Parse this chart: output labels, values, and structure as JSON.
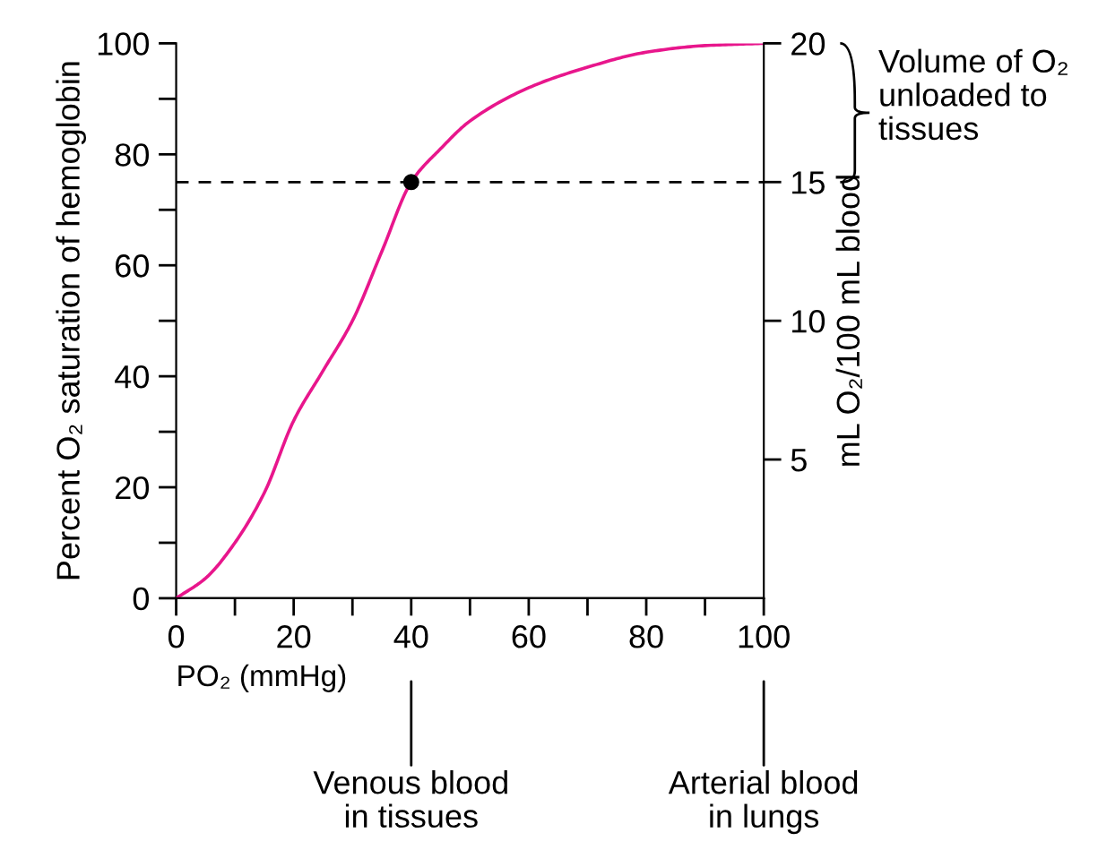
{
  "chart_data": {
    "type": "line",
    "xlabel": "PO₂ (mmHg)",
    "ylabel": "Percent O₂ saturation of hemoglobin",
    "y2label": "mL O₂/100 mL blood",
    "series": [
      {
        "color": "#e8168c",
        "x": [
          0,
          5,
          10,
          15,
          20,
          25,
          30,
          35,
          40,
          45,
          50,
          60,
          70,
          80,
          90,
          100
        ],
        "values": [
          0,
          3.6,
          10,
          19,
          32,
          41,
          50,
          62.5,
          75,
          81,
          86,
          92,
          95.7,
          98.4,
          99.6,
          100
        ]
      },
      {
        "type": "scatter",
        "color": "#000000",
        "marker": "circle",
        "x": [
          40
        ],
        "values": [
          75
        ]
      }
    ],
    "xlim": [
      0,
      100
    ],
    "ylim": [
      0,
      100
    ],
    "y2lim": [
      0,
      20
    ],
    "xticks": [
      0,
      {
        "value": 10,
        "label": null
      },
      20,
      {
        "value": 30,
        "label": null
      },
      40,
      {
        "value": 50,
        "label": null
      },
      60,
      {
        "value": 70,
        "label": null
      },
      80,
      {
        "value": 90,
        "label": null
      },
      100
    ],
    "yticks": [
      0,
      {
        "value": 10,
        "label": null
      },
      20,
      {
        "value": 30,
        "label": null
      },
      40,
      {
        "value": 50,
        "label": null
      },
      60,
      {
        "value": 70,
        "label": null
      },
      80,
      {
        "value": 90,
        "label": null
      },
      100
    ],
    "y2ticks": [
      5,
      10,
      15,
      20
    ],
    "ref_lines": [
      {
        "axis": "y",
        "value": 75,
        "color": "#000000",
        "line_style": "dashed"
      }
    ],
    "annotations": [
      "Volume of O₂\nunloaded to\ntissues",
      {
        "text": "Venous blood\nin tissues",
        "x": 40
      },
      {
        "text": "Arterial blood\nin lungs",
        "x": 100
      }
    ],
    "grid": false
  }
}
